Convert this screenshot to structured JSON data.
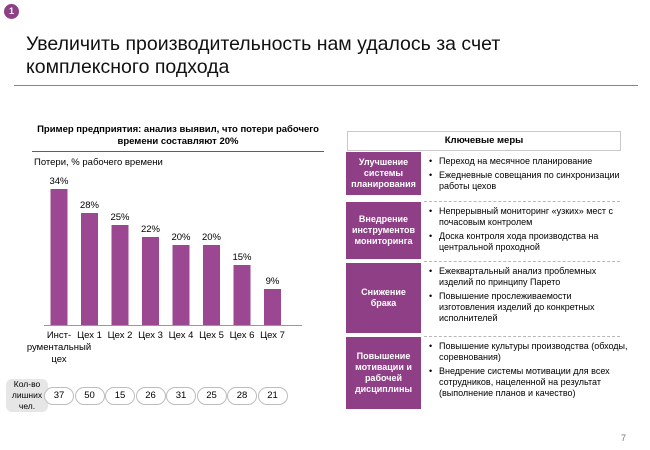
{
  "slide_badge": "1",
  "title": "Увеличить производительность нам удалось за счет комплексного подхода",
  "chart_heading": "Пример предприятия: анализ выявил, что потери рабочего времени составляют 20%",
  "colors": {
    "accent": "#8e3f86",
    "bar": "#9b4792"
  },
  "chart_data": {
    "type": "bar",
    "title": "Пример предприятия: анализ выявил, что потери рабочего времени составляют 20%",
    "ylabel": "Потери, % рабочего времени",
    "xlabel": "",
    "categories": [
      "Инст-\nрументальный\nцех",
      "Цех 1",
      "Цех 2",
      "Цех 3",
      "Цех 4",
      "Цех 5",
      "Цех 6",
      "Цех 7"
    ],
    "values": [
      34,
      28,
      25,
      22,
      20,
      20,
      15,
      9
    ],
    "value_labels": [
      "34%",
      "28%",
      "25%",
      "22%",
      "20%",
      "20%",
      "15%",
      "9%"
    ],
    "ylim": [
      0,
      34
    ],
    "grid": false,
    "legend": "none"
  },
  "quantity": {
    "label": "Кол-во лишних чел.",
    "values": [
      "37",
      "50",
      "15",
      "26",
      "31",
      "25",
      "28",
      "21"
    ]
  },
  "measures": {
    "heading": "Ключевые меры",
    "groups": [
      {
        "category": "Улучшение системы планирования",
        "items": [
          "Переход на месячное планирование",
          "Ежедневные совещания по синхронизации работы цехов"
        ]
      },
      {
        "category": "Внедрение инструментов мониторинга",
        "items": [
          "Непрерывный мониторинг «узких» мест с почасовым контролем",
          "Доска контроля хода производства на центральной проходной"
        ]
      },
      {
        "category": "Снижение брака",
        "items": [
          "Ежеквартальный анализ проблемных изделий по принципу Парето",
          "Повышение прослеживаемости изготовления изделий до конкретных исполнителей"
        ]
      },
      {
        "category": "Повышение мотивации и рабочей дисциплины",
        "items": [
          "Повышение культуры производства (обходы, соревнования)",
          "Внедрение системы мотивации для всех сотрудников, нацеленной на результат (выполнение планов и качество)"
        ]
      }
    ]
  },
  "page_number": "7"
}
